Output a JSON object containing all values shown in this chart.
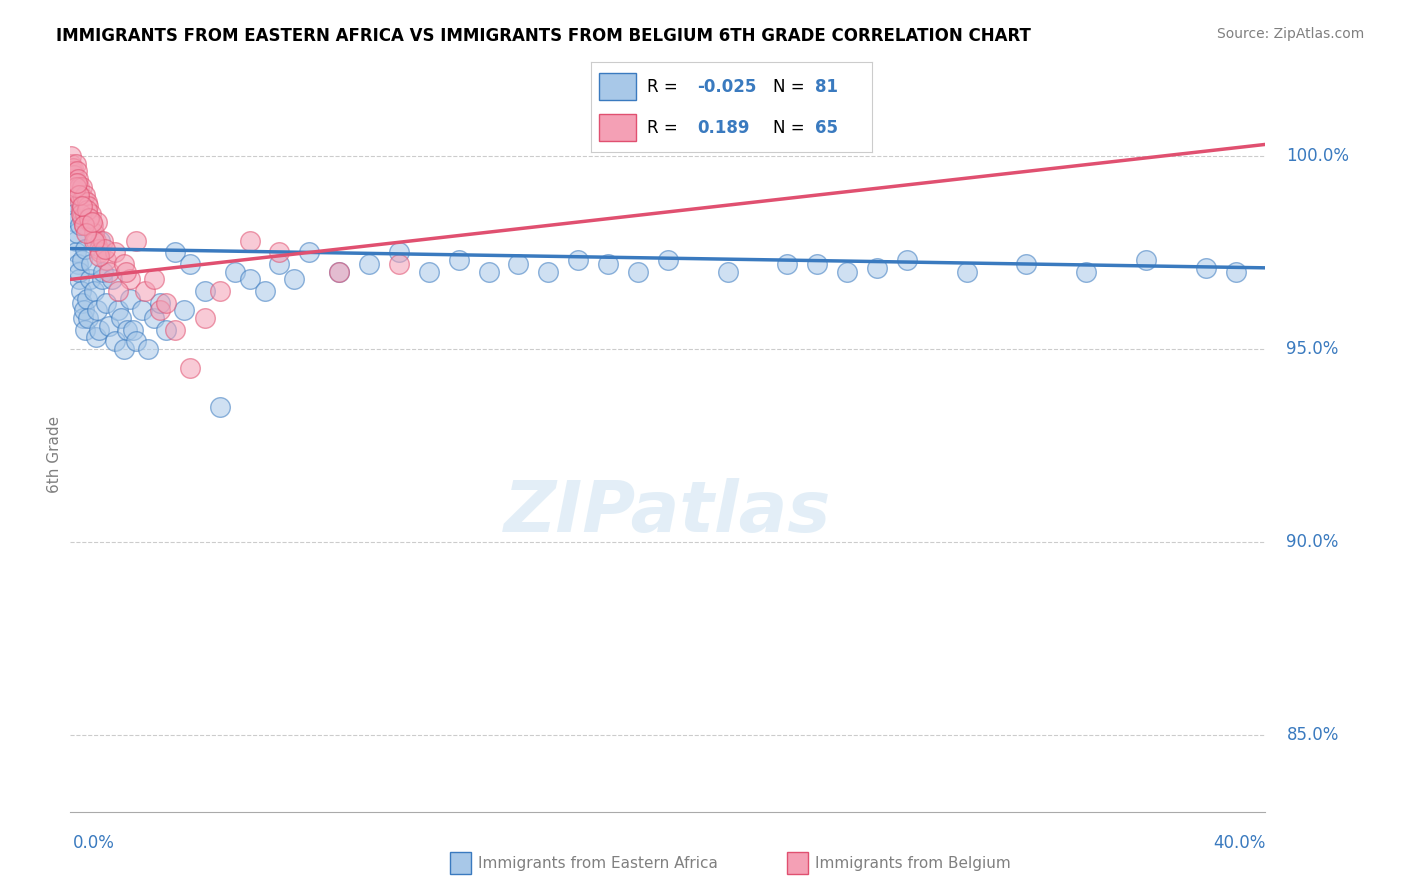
{
  "title": "IMMIGRANTS FROM EASTERN AFRICA VS IMMIGRANTS FROM BELGIUM 6TH GRADE CORRELATION CHART",
  "source": "Source: ZipAtlas.com",
  "ylabel": "6th Grade",
  "xlim": [
    0.0,
    40.0
  ],
  "ylim": [
    83.0,
    101.5
  ],
  "yticks": [
    85.0,
    90.0,
    95.0,
    100.0
  ],
  "ytick_labels": [
    "85.0%",
    "90.0%",
    "95.0%",
    "100.0%"
  ],
  "blue_R": -0.025,
  "blue_N": 81,
  "pink_R": 0.189,
  "pink_N": 65,
  "blue_color": "#a8c8e8",
  "pink_color": "#f4a0b5",
  "blue_line_color": "#3a7abf",
  "pink_line_color": "#e05070",
  "watermark": "ZIPatlas",
  "blue_line_x0": 0.0,
  "blue_line_y0": 97.6,
  "blue_line_x1": 40.0,
  "blue_line_y1": 97.1,
  "pink_line_x0": 0.0,
  "pink_line_y0": 96.8,
  "pink_line_x1": 40.0,
  "pink_line_y1": 100.3,
  "blue_scatter_x": [
    0.05,
    0.08,
    0.1,
    0.12,
    0.15,
    0.18,
    0.2,
    0.22,
    0.25,
    0.28,
    0.3,
    0.32,
    0.35,
    0.38,
    0.4,
    0.42,
    0.45,
    0.48,
    0.5,
    0.55,
    0.6,
    0.65,
    0.7,
    0.8,
    0.85,
    0.9,
    0.95,
    1.0,
    1.05,
    1.1,
    1.2,
    1.3,
    1.4,
    1.5,
    1.6,
    1.7,
    1.8,
    1.9,
    2.0,
    2.1,
    2.2,
    2.4,
    2.6,
    2.8,
    3.0,
    3.2,
    3.5,
    3.8,
    4.0,
    4.5,
    5.0,
    5.5,
    6.0,
    6.5,
    7.0,
    7.5,
    8.0,
    9.0,
    10.0,
    11.0,
    12.0,
    13.0,
    14.0,
    15.0,
    16.0,
    17.0,
    18.0,
    19.0,
    20.0,
    22.0,
    24.0,
    26.0,
    28.0,
    30.0,
    32.0,
    34.0,
    36.0,
    38.0,
    39.0,
    25.0,
    27.0
  ],
  "blue_scatter_y": [
    99.2,
    98.8,
    99.5,
    98.5,
    98.3,
    97.8,
    97.5,
    98.0,
    97.2,
    96.8,
    97.0,
    98.2,
    96.5,
    97.3,
    96.2,
    95.8,
    96.0,
    97.6,
    95.5,
    96.3,
    95.8,
    96.8,
    97.2,
    96.5,
    95.3,
    96.0,
    95.5,
    97.8,
    96.8,
    97.0,
    96.2,
    95.6,
    96.8,
    95.2,
    96.0,
    95.8,
    95.0,
    95.5,
    96.3,
    95.5,
    95.2,
    96.0,
    95.0,
    95.8,
    96.2,
    95.5,
    97.5,
    96.0,
    97.2,
    96.5,
    93.5,
    97.0,
    96.8,
    96.5,
    97.2,
    96.8,
    97.5,
    97.0,
    97.2,
    97.5,
    97.0,
    97.3,
    97.0,
    97.2,
    97.0,
    97.3,
    97.2,
    97.0,
    97.3,
    97.0,
    97.2,
    97.0,
    97.3,
    97.0,
    97.2,
    97.0,
    97.3,
    97.1,
    97.0,
    97.2,
    97.1
  ],
  "pink_scatter_x": [
    0.02,
    0.04,
    0.06,
    0.08,
    0.1,
    0.12,
    0.15,
    0.18,
    0.2,
    0.22,
    0.25,
    0.28,
    0.3,
    0.32,
    0.35,
    0.38,
    0.4,
    0.42,
    0.45,
    0.48,
    0.5,
    0.55,
    0.6,
    0.65,
    0.7,
    0.75,
    0.8,
    0.85,
    0.9,
    0.95,
    1.0,
    1.1,
    1.2,
    1.3,
    1.5,
    1.8,
    2.0,
    2.5,
    3.0,
    3.5,
    4.0,
    5.0,
    6.0,
    7.0,
    9.0,
    11.0,
    3.2,
    0.35,
    4.5,
    2.2,
    0.18,
    0.55,
    0.95,
    1.6,
    2.8,
    0.28,
    0.62,
    1.15,
    1.85,
    0.45,
    0.78,
    0.22,
    0.38,
    0.52,
    0.72
  ],
  "pink_scatter_y": [
    99.8,
    100.0,
    99.6,
    99.4,
    99.7,
    99.5,
    99.3,
    99.1,
    99.8,
    99.6,
    99.4,
    99.2,
    99.0,
    98.8,
    98.6,
    99.2,
    98.4,
    98.9,
    98.2,
    99.0,
    98.5,
    98.8,
    98.7,
    98.3,
    98.5,
    98.2,
    98.0,
    97.8,
    98.3,
    97.6,
    97.5,
    97.8,
    97.3,
    97.0,
    97.5,
    97.2,
    96.8,
    96.5,
    96.0,
    95.5,
    94.5,
    96.5,
    97.8,
    97.5,
    97.0,
    97.2,
    96.2,
    98.5,
    95.8,
    97.8,
    99.2,
    98.6,
    97.4,
    96.5,
    96.8,
    99.0,
    98.4,
    97.6,
    97.0,
    98.2,
    97.8,
    99.3,
    98.7,
    98.0,
    98.3
  ]
}
